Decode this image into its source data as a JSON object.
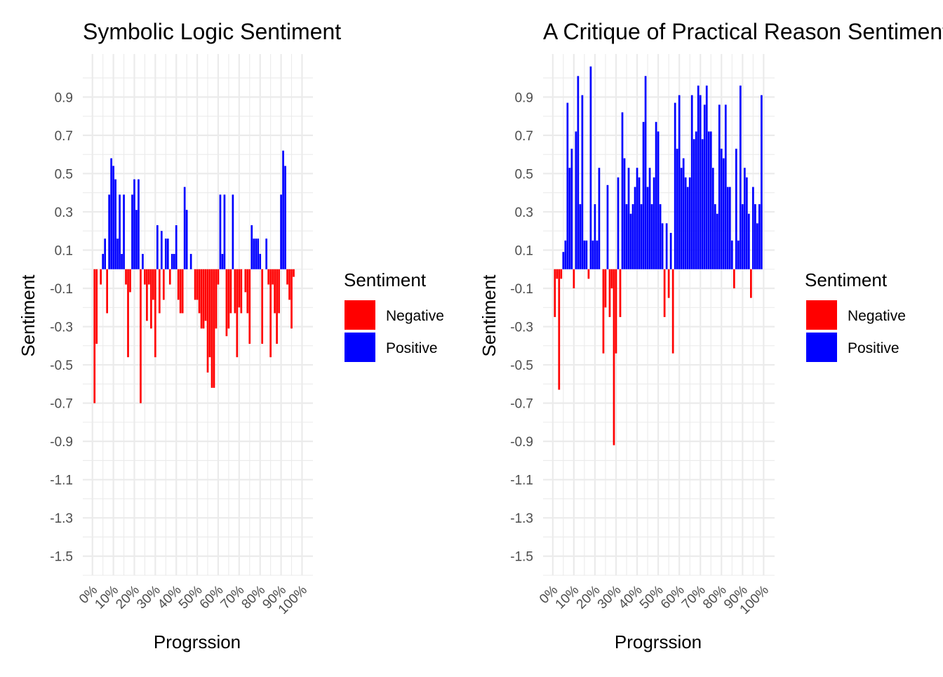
{
  "colors": {
    "negative": "#FF0000",
    "positive": "#0000FF",
    "grid": "#EBEBEB",
    "text": "#4D4D4D",
    "title": "#000000"
  },
  "chart_data": [
    {
      "type": "bar",
      "title": "Symbolic Logic Sentiment",
      "xlabel": "Progrssion",
      "ylabel": "Sentiment",
      "legend": {
        "title": "Sentiment",
        "position": "right",
        "entries": [
          "Negative",
          "Positive"
        ]
      },
      "grid": true,
      "ylim": [
        -1.6,
        1.125
      ],
      "xlim": [
        -4.6,
        105.2
      ],
      "ytick_labels": [
        "0.9",
        "0.7",
        "0.5",
        "0.3",
        "0.1",
        "-0.1",
        "-0.3",
        "-0.5",
        "-0.7",
        "-0.9",
        "-1.1",
        "-1.3",
        "-1.5"
      ],
      "xtick_labels": [
        "0%",
        "10%",
        "20%",
        "30%",
        "40%",
        "50%",
        "60%",
        "70%",
        "80%",
        "90%",
        "100%"
      ],
      "bar_width": 0.9,
      "x": [
        1,
        2,
        3,
        4,
        5,
        6,
        7,
        8,
        9,
        10,
        11,
        12,
        13,
        14,
        15,
        16,
        17,
        18,
        19,
        20,
        21,
        22,
        23,
        24,
        25,
        26,
        27,
        28,
        29,
        30,
        31,
        32,
        33,
        34,
        35,
        36,
        37,
        38,
        39,
        40,
        41,
        42,
        43,
        44,
        45,
        46,
        47,
        48,
        49,
        50,
        51,
        52,
        53,
        54,
        55,
        56,
        57,
        58,
        59,
        60,
        61,
        62,
        63,
        64,
        65,
        66,
        67,
        68,
        69,
        70,
        71,
        72,
        73,
        74,
        75,
        76,
        77,
        78,
        79,
        80,
        81,
        82,
        83,
        84,
        85,
        86,
        87,
        88,
        89,
        90,
        91,
        92,
        93,
        94,
        95,
        96,
        97,
        98,
        99
      ],
      "values": [
        -0.7,
        -0.39,
        0,
        -0.08,
        0.08,
        0.16,
        -0.23,
        0.39,
        0.58,
        0.54,
        0.47,
        0.16,
        0.39,
        0.08,
        0.39,
        -0.08,
        -0.46,
        -0.12,
        0.39,
        0.47,
        0.31,
        0.47,
        -0.7,
        0.08,
        -0.08,
        -0.27,
        -0.08,
        -0.31,
        -0.16,
        -0.46,
        0.23,
        -0.23,
        0.2,
        -0.16,
        0.16,
        0.16,
        -0.08,
        0.08,
        0.08,
        0.23,
        -0.16,
        -0.23,
        -0.23,
        0.43,
        0.31,
        0,
        0.08,
        0,
        -0.16,
        -0.16,
        -0.23,
        -0.31,
        -0.31,
        -0.27,
        -0.54,
        -0.46,
        -0.62,
        -0.62,
        -0.31,
        -0.08,
        0.39,
        0.08,
        0.39,
        -0.35,
        -0.31,
        -0.23,
        0.39,
        -0.23,
        -0.46,
        -0.2,
        -0.23,
        0,
        -0.12,
        -0.23,
        -0.39,
        0.23,
        0.16,
        0.16,
        0.16,
        0.08,
        -0.39,
        0,
        0.16,
        -0.08,
        -0.46,
        -0.08,
        -0.23,
        -0.39,
        -0.23,
        0.39,
        0.62,
        0.54,
        -0.08,
        -0.16,
        -0.31,
        -0.04,
        0,
        0,
        0
      ]
    },
    {
      "type": "bar",
      "title": "A Critique of Practical Reason Sentiment",
      "xlabel": "Progrssion",
      "ylabel": "Sentiment",
      "legend": {
        "title": "Sentiment",
        "position": "right",
        "entries": [
          "Negative",
          "Positive"
        ]
      },
      "grid": true,
      "ylim": [
        -1.6,
        1.125
      ],
      "xlim": [
        -4.6,
        105.2
      ],
      "ytick_labels": [
        "0.9",
        "0.7",
        "0.5",
        "0.3",
        "0.1",
        "-0.1",
        "-0.3",
        "-0.5",
        "-0.7",
        "-0.9",
        "-1.1",
        "-1.3",
        "-1.5"
      ],
      "xtick_labels": [
        "0%",
        "10%",
        "20%",
        "30%",
        "40%",
        "50%",
        "60%",
        "70%",
        "80%",
        "90%",
        "100%"
      ],
      "bar_width": 0.9,
      "x": [
        1,
        2,
        3,
        4,
        5,
        6,
        7,
        8,
        9,
        10,
        11,
        12,
        13,
        14,
        15,
        16,
        17,
        18,
        19,
        20,
        21,
        22,
        23,
        24,
        25,
        26,
        27,
        28,
        29,
        30,
        31,
        32,
        33,
        34,
        35,
        36,
        37,
        38,
        39,
        40,
        41,
        42,
        43,
        44,
        45,
        46,
        47,
        48,
        49,
        50,
        51,
        52,
        53,
        54,
        55,
        56,
        57,
        58,
        59,
        60,
        61,
        62,
        63,
        64,
        65,
        66,
        67,
        68,
        69,
        70,
        71,
        72,
        73,
        74,
        75,
        76,
        77,
        78,
        79,
        80,
        81,
        82,
        83,
        84,
        85,
        86,
        87,
        88,
        89,
        90,
        91,
        92,
        93,
        94,
        95,
        96,
        97,
        98,
        99
      ],
      "values": [
        -0.25,
        -0.05,
        -0.63,
        -0.05,
        0.09,
        0.15,
        0.87,
        0.53,
        0.63,
        -0.1,
        0.72,
        1.01,
        0.34,
        0.91,
        0.15,
        0.15,
        -0.05,
        1.06,
        0.15,
        0.34,
        0.15,
        0.53,
        0,
        -0.44,
        -0.2,
        0.44,
        -0.25,
        -0.1,
        -0.92,
        -0.44,
        0.48,
        -0.25,
        0.82,
        0.58,
        0.34,
        0.53,
        0.29,
        0.34,
        0.43,
        0.53,
        0.48,
        0.34,
        0.77,
        1.01,
        0.43,
        0.53,
        0.34,
        0.48,
        0.77,
        0.72,
        0.34,
        0.24,
        -0.25,
        0.24,
        -0.15,
        0.19,
        -0.44,
        0.87,
        0.63,
        0.91,
        0.53,
        0.58,
        0.48,
        0.43,
        0.48,
        0.91,
        0.68,
        0.72,
        0.96,
        0.91,
        0.68,
        0.86,
        0.96,
        0.72,
        0.72,
        0.53,
        0.34,
        0.29,
        0.86,
        0.63,
        0.58,
        0.86,
        0.43,
        0.43,
        0.15,
        -0.1,
        0.63,
        0.15,
        0.96,
        0.34,
        0.53,
        0.48,
        0.29,
        -0.15,
        0.43,
        0.34,
        0.24,
        0.34,
        0.91
      ]
    }
  ]
}
